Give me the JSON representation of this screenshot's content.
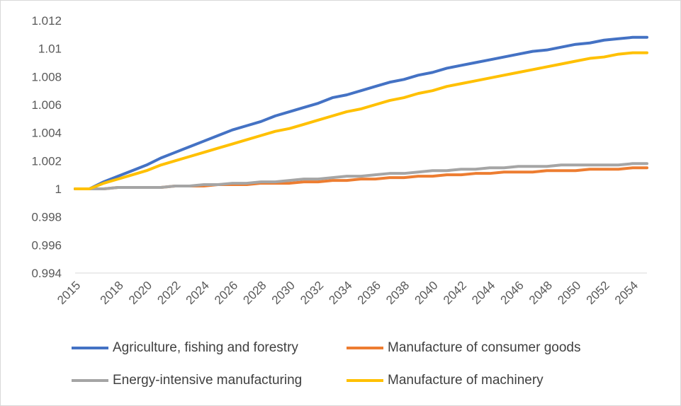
{
  "chart_data": {
    "type": "line",
    "title": "",
    "xlabel": "",
    "ylabel": "",
    "x": [
      2015,
      2016,
      2017,
      2018,
      2019,
      2020,
      2021,
      2022,
      2023,
      2024,
      2025,
      2026,
      2027,
      2028,
      2029,
      2030,
      2031,
      2032,
      2033,
      2034,
      2035,
      2036,
      2037,
      2038,
      2039,
      2040,
      2041,
      2042,
      2043,
      2044,
      2045,
      2046,
      2047,
      2048,
      2049,
      2050,
      2051,
      2052,
      2053,
      2054,
      2055
    ],
    "x_tick_labels": [
      "2015",
      "2018",
      "2020",
      "2022",
      "2024",
      "2026",
      "2028",
      "2030",
      "2032",
      "2034",
      "2036",
      "2038",
      "2040",
      "2042",
      "2044",
      "2046",
      "2048",
      "2050",
      "2052",
      "2054"
    ],
    "y_ticks": [
      "0.994",
      "0.996",
      "0.998",
      "1",
      "1.002",
      "1.004",
      "1.006",
      "1.008",
      "1.01",
      "1.012"
    ],
    "ylim": [
      0.994,
      1.012
    ],
    "grid": false,
    "legend_position": "bottom",
    "series": [
      {
        "name": "Agriculture, fishing and forestry",
        "color": "#4472c4",
        "values": [
          1.0,
          1.0,
          1.0005,
          1.0009,
          1.0013,
          1.0017,
          1.0022,
          1.0026,
          1.003,
          1.0034,
          1.0038,
          1.0042,
          1.0045,
          1.0048,
          1.0052,
          1.0055,
          1.0058,
          1.0061,
          1.0065,
          1.0067,
          1.007,
          1.0073,
          1.0076,
          1.0078,
          1.0081,
          1.0083,
          1.0086,
          1.0088,
          1.009,
          1.0092,
          1.0094,
          1.0096,
          1.0098,
          1.0099,
          1.0101,
          1.0103,
          1.0104,
          1.0106,
          1.0107,
          1.0108,
          1.0108
        ]
      },
      {
        "name": "Manufacture of consumer goods",
        "color": "#ed7d31",
        "values": [
          1.0,
          1.0,
          1.0,
          1.0001,
          1.0001,
          1.0001,
          1.0001,
          1.0002,
          1.0002,
          1.0002,
          1.0003,
          1.0003,
          1.0003,
          1.0004,
          1.0004,
          1.0004,
          1.0005,
          1.0005,
          1.0006,
          1.0006,
          1.0007,
          1.0007,
          1.0008,
          1.0008,
          1.0009,
          1.0009,
          1.001,
          1.001,
          1.0011,
          1.0011,
          1.0012,
          1.0012,
          1.0012,
          1.0013,
          1.0013,
          1.0013,
          1.0014,
          1.0014,
          1.0014,
          1.0015,
          1.0015
        ]
      },
      {
        "name": "Energy-intensive manufacturing",
        "color": "#a5a5a5",
        "values": [
          1.0,
          1.0,
          1.0,
          1.0001,
          1.0001,
          1.0001,
          1.0001,
          1.0002,
          1.0002,
          1.0003,
          1.0003,
          1.0004,
          1.0004,
          1.0005,
          1.0005,
          1.0006,
          1.0007,
          1.0007,
          1.0008,
          1.0009,
          1.0009,
          1.001,
          1.0011,
          1.0011,
          1.0012,
          1.0013,
          1.0013,
          1.0014,
          1.0014,
          1.0015,
          1.0015,
          1.0016,
          1.0016,
          1.0016,
          1.0017,
          1.0017,
          1.0017,
          1.0017,
          1.0017,
          1.0018,
          1.0018
        ]
      },
      {
        "name": "Manufacture of machinery",
        "color": "#ffc000",
        "values": [
          1.0,
          1.0,
          1.0004,
          1.0007,
          1.001,
          1.0013,
          1.0017,
          1.002,
          1.0023,
          1.0026,
          1.0029,
          1.0032,
          1.0035,
          1.0038,
          1.0041,
          1.0043,
          1.0046,
          1.0049,
          1.0052,
          1.0055,
          1.0057,
          1.006,
          1.0063,
          1.0065,
          1.0068,
          1.007,
          1.0073,
          1.0075,
          1.0077,
          1.0079,
          1.0081,
          1.0083,
          1.0085,
          1.0087,
          1.0089,
          1.0091,
          1.0093,
          1.0094,
          1.0096,
          1.0097,
          1.0097
        ]
      }
    ]
  }
}
